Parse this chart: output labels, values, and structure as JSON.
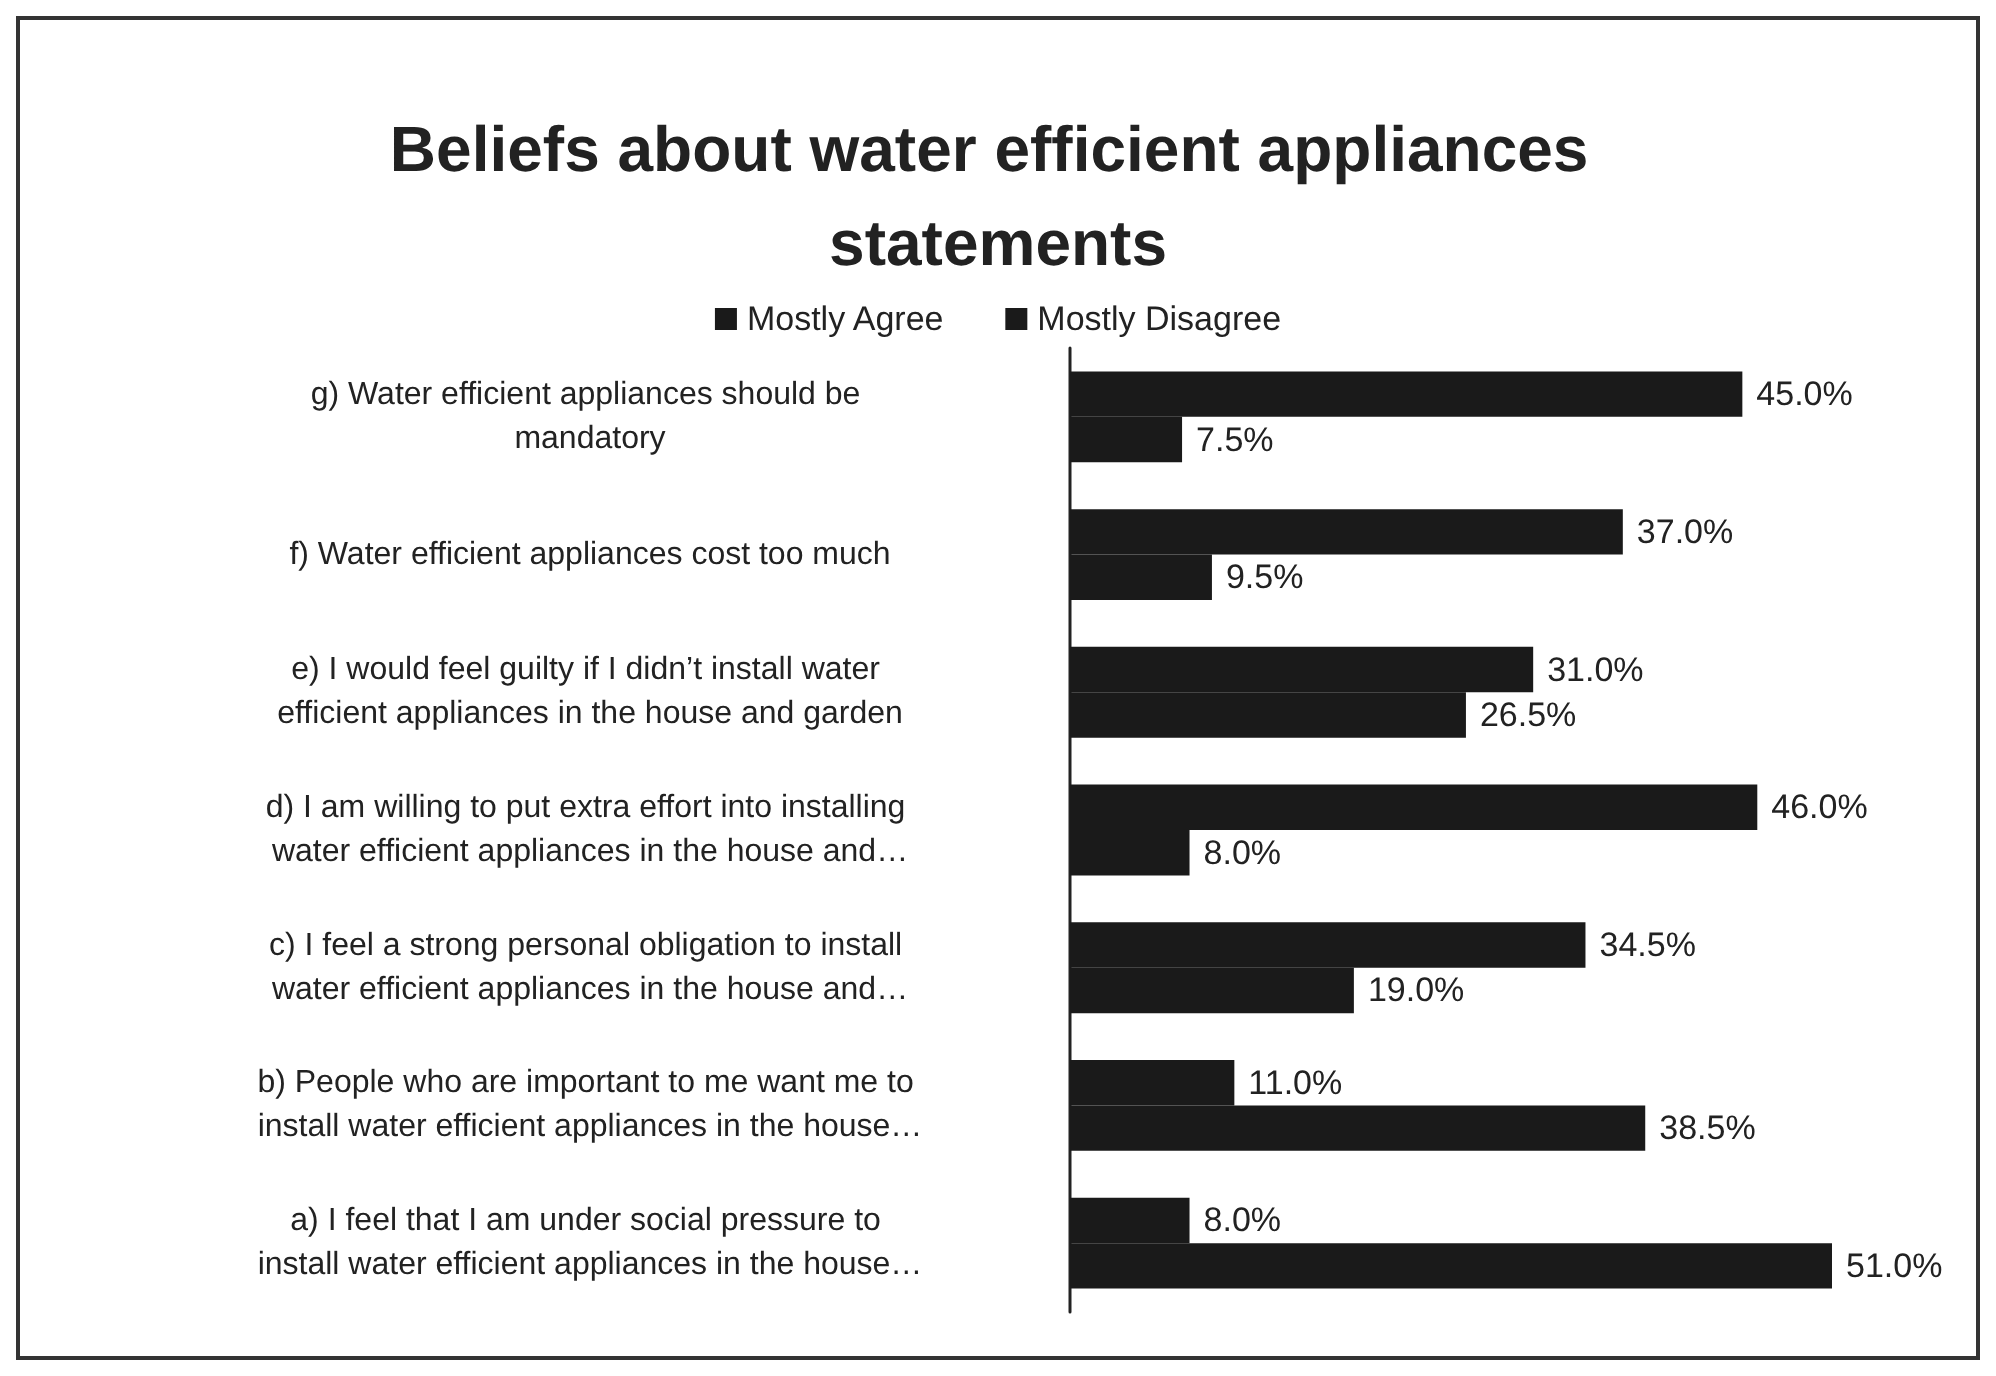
{
  "chart_data": {
    "type": "bar",
    "orientation": "horizontal",
    "title": "Beliefs about water efficient appliances statements",
    "categories": [
      "g) Water efficient appliances should be mandatory",
      "f) Water efficient appliances cost too much",
      "e) I would feel guilty if I didn’t install water efficient appliances in the house and garden",
      "d) I am willing to put extra effort into installing water efficient appliances in the house and…",
      "c) I feel a strong personal obligation to install water efficient appliances in the house and…",
      "b) People who are important to me want me to install water efficient appliances in the house…",
      "a) I feel that I am under social pressure to install water efficient appliances in the house…"
    ],
    "series": [
      {
        "name": "Mostly Agree",
        "color": "#1a1a1a",
        "values": [
          45.0,
          37.0,
          31.0,
          46.0,
          34.5,
          11.0,
          8.0
        ],
        "value_labels": [
          "45.0%",
          "37.0%",
          "31.0%",
          "46.0%",
          "34.5%",
          "11.0%",
          "8.0%"
        ]
      },
      {
        "name": "Mostly Disagree",
        "color": "#1a1a1a",
        "values": [
          7.5,
          9.5,
          26.5,
          8.0,
          19.0,
          38.5,
          51.0
        ],
        "value_labels": [
          "7.5%",
          "9.5%",
          "26.5%",
          "8.0%",
          "19.0%",
          "38.5%",
          "51.0%"
        ]
      }
    ],
    "legend": "top",
    "tick_labels": "y"
  }
}
